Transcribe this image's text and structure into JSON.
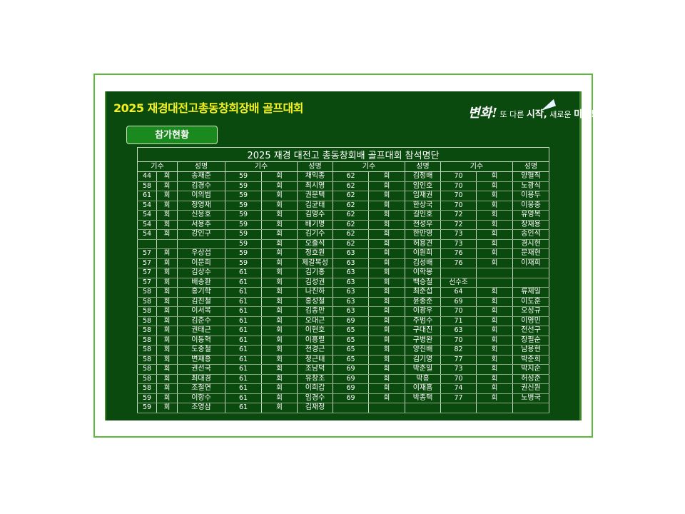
{
  "header": {
    "title": "2025 재경대전고총동창회장배 골프대회",
    "logo_text": "변화! 또 다른 시작, 새로운 미래!",
    "tab_label": "참가현황"
  },
  "table": {
    "caption": "2025 재경 대전고 총동창회배 골프대회 참석명단",
    "headers": [
      "기수",
      "성명",
      "기수",
      "성명",
      "기수",
      "성명",
      "기수",
      "성명"
    ],
    "rows": [
      [
        "44",
        "회",
        "송재준",
        "59",
        "회",
        "채익종",
        "62",
        "회",
        "김정배",
        "70",
        "회",
        "양혈직"
      ],
      [
        "58",
        "회",
        "김경수",
        "59",
        "회",
        "최시영",
        "62",
        "회",
        "임인호",
        "70",
        "회",
        "노광식"
      ],
      [
        "61",
        "회",
        "이의범",
        "59",
        "회",
        "권문택",
        "62",
        "회",
        "임재권",
        "70",
        "회",
        "이용두"
      ],
      [
        "54",
        "회",
        "정영재",
        "59",
        "회",
        "김균태",
        "62",
        "회",
        "한상국",
        "70",
        "회",
        "이웅중"
      ],
      [
        "54",
        "회",
        "신응호",
        "59",
        "회",
        "김영수",
        "62",
        "회",
        "길인호",
        "72",
        "회",
        "유영복"
      ],
      [
        "54",
        "회",
        "서용주",
        "59",
        "회",
        "배기명",
        "62",
        "회",
        "전성우",
        "72",
        "회",
        "장재용"
      ],
      [
        "54",
        "회",
        "강인구",
        "59",
        "회",
        "김기수",
        "62",
        "회",
        "한만영",
        "73",
        "회",
        "송인석"
      ],
      [
        "",
        "",
        "",
        "59",
        "회",
        "오출석",
        "62",
        "회",
        "허용견",
        "73",
        "회",
        "경시현"
      ],
      [
        "57",
        "회",
        "우상섭",
        "59",
        "회",
        "정호원",
        "63",
        "회",
        "이원희",
        "76",
        "회",
        "문재현"
      ],
      [
        "57",
        "회",
        "이문희",
        "59",
        "회",
        "제갈복성",
        "63",
        "회",
        "김성배",
        "76",
        "회",
        "이재희"
      ],
      [
        "57",
        "회",
        "김상수",
        "61",
        "회",
        "김기홍",
        "63",
        "회",
        "이학봉",
        "",
        "",
        ""
      ],
      [
        "57",
        "회",
        "배송환",
        "61",
        "회",
        "김성권",
        "63",
        "회",
        "백승철",
        "선수조",
        "",
        ""
      ],
      [
        "58",
        "회",
        "홍기학",
        "61",
        "회",
        "나진하",
        "63",
        "회",
        "최준섭",
        "64",
        "회",
        "류제일"
      ],
      [
        "58",
        "회",
        "김진철",
        "61",
        "회",
        "홍성철",
        "63",
        "회",
        "윤종준",
        "69",
        "회",
        "이도훈"
      ],
      [
        "58",
        "회",
        "이서복",
        "61",
        "회",
        "김종만",
        "63",
        "회",
        "이광우",
        "70",
        "회",
        "오성규"
      ],
      [
        "58",
        "회",
        "김춘수",
        "61",
        "회",
        "오대근",
        "69",
        "회",
        "주범수",
        "71",
        "회",
        "이영민"
      ],
      [
        "58",
        "회",
        "권태근",
        "61",
        "회",
        "이현호",
        "65",
        "회",
        "구대진",
        "63",
        "회",
        "전선구"
      ],
      [
        "58",
        "회",
        "이동혁",
        "61",
        "회",
        "이흥렬",
        "65",
        "회",
        "구병완",
        "70",
        "회",
        "장필순"
      ],
      [
        "58",
        "회",
        "도중철",
        "61",
        "회",
        "전경근",
        "65",
        "회",
        "양진배",
        "82",
        "회",
        "남용현"
      ],
      [
        "58",
        "회",
        "변재흥",
        "61",
        "회",
        "정근태",
        "65",
        "회",
        "김기영",
        "77",
        "회",
        "박준희"
      ],
      [
        "58",
        "회",
        "권선국",
        "61",
        "회",
        "조남덕",
        "69",
        "회",
        "박춘일",
        "73",
        "회",
        "박지순"
      ],
      [
        "58",
        "회",
        "최대경",
        "61",
        "회",
        "유창조",
        "69",
        "회",
        "박흥",
        "70",
        "회",
        "허성준"
      ],
      [
        "58",
        "회",
        "조철연",
        "61",
        "회",
        "이희갑",
        "69",
        "회",
        "이재흠",
        "74",
        "회",
        "권신원"
      ],
      [
        "59",
        "회",
        "이항수",
        "61",
        "회",
        "임경수",
        "69",
        "회",
        "박종택",
        "77",
        "회",
        "노병국"
      ],
      [
        "59",
        "회",
        "조영삼",
        "61",
        "회",
        "김재정",
        "",
        "",
        "",
        "",
        "",
        ""
      ]
    ]
  },
  "colors": {
    "panel": "#0b4a0e",
    "title": "#f5f01e",
    "frame": "#5cb83a",
    "tab": "#1a8a1e"
  }
}
